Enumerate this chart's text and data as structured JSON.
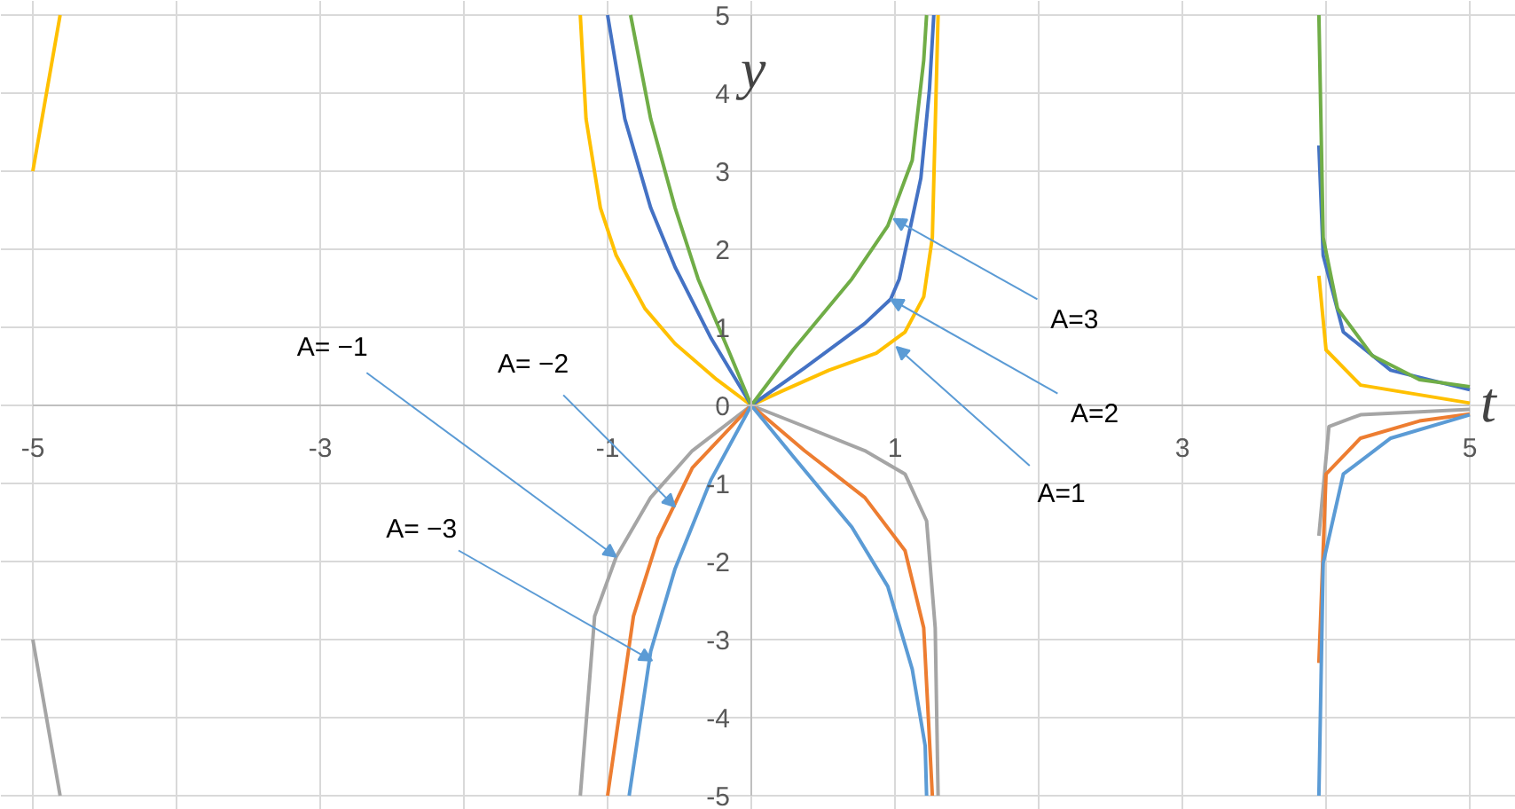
{
  "chart_data": {
    "type": "line",
    "xlabel": "t",
    "ylabel": "y",
    "xlim": [
      -5,
      5
    ],
    "ylim": [
      -5,
      5
    ],
    "xticks": [
      -5,
      {
        "value": -4,
        "label": null
      },
      -3,
      {
        "value": -2,
        "label": null
      },
      -1,
      {
        "value": 0,
        "label": null
      },
      1,
      {
        "value": 2,
        "label": null
      },
      3,
      {
        "value": 4,
        "label": null
      },
      5
    ],
    "yticks": [
      -5,
      -4,
      -3,
      -2,
      -1,
      0,
      1,
      2,
      3,
      4,
      5
    ],
    "grid": true,
    "marker": "none",
    "line_style": "solid",
    "series": [
      {
        "color": "#ffc000",
        "x": [
          -5,
          -4.81,
          null,
          -1.19,
          -1.15,
          -1.05,
          -0.94,
          -0.74,
          -0.53,
          -0.24,
          0,
          0.21,
          0.54,
          0.87,
          1.07,
          1.2,
          1.26,
          1.3,
          null,
          3.95,
          4.0,
          4.24,
          5
        ],
        "values": [
          3,
          5,
          null,
          5,
          3.67,
          2.53,
          1.92,
          1.24,
          0.79,
          0.33,
          0,
          0.18,
          0.45,
          0.67,
          0.94,
          1.39,
          2.15,
          5,
          null,
          1.66,
          0.71,
          0.26,
          0.03
        ]
      },
      {
        "color": "#4472c4",
        "x": [
          -1.0,
          -0.88,
          -0.7,
          -0.53,
          -0.28,
          0,
          0.37,
          0.79,
          0.97,
          1.03,
          1.18,
          1.24,
          1.27,
          null,
          3.95,
          3.98,
          4.12,
          4.45,
          5
        ],
        "values": [
          5,
          3.67,
          2.53,
          1.77,
          0.86,
          0,
          0.48,
          1.05,
          1.36,
          1.62,
          2.91,
          4.05,
          5,
          null,
          3.33,
          1.92,
          0.94,
          0.45,
          0.2
        ]
      },
      {
        "color": "#70ad47",
        "x": [
          -0.84,
          -0.7,
          -0.53,
          -0.37,
          -0.16,
          0,
          0.29,
          0.7,
          0.95,
          1.12,
          1.2,
          1.22,
          null,
          3.95,
          3.98,
          4.08,
          4.32,
          4.65,
          5
        ],
        "values": [
          5,
          3.67,
          2.53,
          1.62,
          0.71,
          0,
          0.71,
          1.62,
          2.3,
          3.14,
          4.42,
          5,
          null,
          5,
          2.15,
          1.24,
          0.64,
          0.33,
          0.24
        ]
      },
      {
        "color": "#a5a5a5",
        "x": [
          -5,
          -4.81,
          null,
          -1.19,
          -1.09,
          -0.94,
          -0.7,
          -0.41,
          0,
          0.37,
          0.79,
          1.07,
          1.22,
          1.28,
          1.3,
          null,
          3.95,
          4.02,
          4.24,
          5
        ],
        "values": [
          -3,
          -5,
          null,
          -5,
          -2.7,
          -1.94,
          -1.18,
          -0.58,
          0,
          -0.27,
          -0.58,
          -0.88,
          -1.48,
          -2.85,
          -5,
          null,
          -1.67,
          -0.27,
          -0.12,
          -0.05
        ]
      },
      {
        "color": "#ed7d31",
        "x": [
          -1.0,
          -0.82,
          -0.65,
          -0.41,
          0,
          0.37,
          0.79,
          1.07,
          1.2,
          1.26,
          null,
          3.95,
          4.0,
          4.24,
          4.65,
          5
        ],
        "values": [
          -5,
          -2.7,
          -1.71,
          -0.8,
          0,
          -0.58,
          -1.18,
          -1.86,
          -2.85,
          -5,
          null,
          -3.3,
          -0.88,
          -0.42,
          -0.2,
          -0.11
        ]
      },
      {
        "color": "#5b9bd5",
        "x": [
          -0.85,
          -0.7,
          -0.53,
          -0.28,
          0,
          0.29,
          0.7,
          0.95,
          1.12,
          1.21,
          1.22,
          null,
          3.95,
          3.98,
          4.12,
          4.45,
          5
        ],
        "values": [
          -5,
          -3.15,
          -2.09,
          -0.95,
          0,
          -0.65,
          -1.56,
          -2.32,
          -3.38,
          -4.36,
          -5,
          null,
          -5,
          -2.02,
          -0.88,
          -0.42,
          -0.12
        ]
      }
    ],
    "annotations": [
      {
        "text": "A=1",
        "x": 1.01,
        "y": 0.75
      },
      {
        "text": "A=2",
        "x": 0.97,
        "y": 1.36
      },
      {
        "text": "A=3",
        "x": 0.99,
        "y": 2.39
      },
      {
        "text": "A= −1",
        "x": -0.94,
        "y": -1.94
      },
      {
        "text": "A= −2",
        "x": -0.53,
        "y": -1.3
      },
      {
        "text": "A= −3",
        "x": -0.69,
        "y": -3.27
      }
    ]
  }
}
